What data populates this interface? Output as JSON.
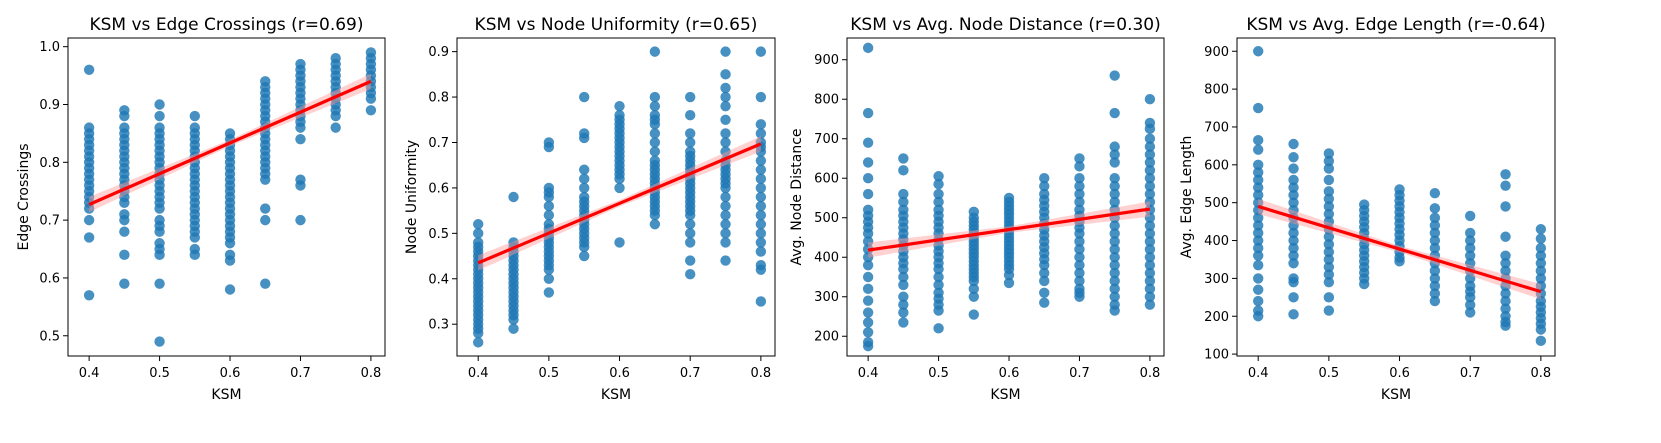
{
  "chart_data": [
    {
      "type": "scatter",
      "title": "KSM vs Edge Crossings (r=0.69)",
      "xlabel": "KSM",
      "ylabel": "Edge Crossings",
      "xlim": [
        0.37,
        0.82
      ],
      "ylim": [
        0.465,
        1.015
      ],
      "xticks": [
        0.4,
        0.5,
        0.6,
        0.7,
        0.8
      ],
      "yticks": [
        0.5,
        0.6,
        0.7,
        0.8,
        0.9,
        1.0
      ],
      "ytick_labels": [
        "0.5",
        "0.6",
        "0.7",
        "0.8",
        "0.9",
        "1.0"
      ],
      "regression": {
        "x": [
          0.4,
          0.8
        ],
        "y": [
          0.727,
          0.94
        ],
        "color": "#ff0000"
      },
      "point_color": "#1f77b4",
      "series": [
        {
          "x": 0.4,
          "y": [
            0.96,
            0.86,
            0.85,
            0.84,
            0.83,
            0.82,
            0.81,
            0.8,
            0.79,
            0.78,
            0.77,
            0.76,
            0.75,
            0.74,
            0.73,
            0.72,
            0.7,
            0.67,
            0.57
          ]
        },
        {
          "x": 0.45,
          "y": [
            0.89,
            0.88,
            0.86,
            0.85,
            0.84,
            0.83,
            0.82,
            0.81,
            0.8,
            0.79,
            0.78,
            0.77,
            0.76,
            0.75,
            0.74,
            0.73,
            0.71,
            0.7,
            0.68,
            0.64,
            0.59
          ]
        },
        {
          "x": 0.5,
          "y": [
            0.9,
            0.88,
            0.86,
            0.85,
            0.84,
            0.83,
            0.82,
            0.81,
            0.8,
            0.79,
            0.78,
            0.77,
            0.76,
            0.75,
            0.74,
            0.73,
            0.72,
            0.7,
            0.69,
            0.68,
            0.66,
            0.65,
            0.64,
            0.59,
            0.49
          ]
        },
        {
          "x": 0.55,
          "y": [
            0.88,
            0.86,
            0.85,
            0.84,
            0.83,
            0.82,
            0.81,
            0.8,
            0.79,
            0.78,
            0.77,
            0.76,
            0.75,
            0.74,
            0.73,
            0.72,
            0.71,
            0.7,
            0.69,
            0.68,
            0.67,
            0.65,
            0.64
          ]
        },
        {
          "x": 0.6,
          "y": [
            0.85,
            0.84,
            0.83,
            0.82,
            0.81,
            0.8,
            0.79,
            0.78,
            0.77,
            0.76,
            0.75,
            0.74,
            0.73,
            0.72,
            0.71,
            0.7,
            0.69,
            0.68,
            0.67,
            0.66,
            0.64,
            0.63,
            0.58
          ]
        },
        {
          "x": 0.65,
          "y": [
            0.94,
            0.93,
            0.92,
            0.91,
            0.9,
            0.89,
            0.88,
            0.87,
            0.86,
            0.85,
            0.84,
            0.83,
            0.82,
            0.81,
            0.8,
            0.79,
            0.78,
            0.77,
            0.72,
            0.7,
            0.59
          ]
        },
        {
          "x": 0.7,
          "y": [
            0.97,
            0.96,
            0.95,
            0.94,
            0.93,
            0.92,
            0.91,
            0.9,
            0.89,
            0.88,
            0.87,
            0.86,
            0.84,
            0.77,
            0.76,
            0.7
          ]
        },
        {
          "x": 0.75,
          "y": [
            0.98,
            0.97,
            0.96,
            0.95,
            0.94,
            0.93,
            0.92,
            0.91,
            0.9,
            0.89,
            0.88,
            0.86
          ]
        },
        {
          "x": 0.8,
          "y": [
            0.99,
            0.98,
            0.97,
            0.96,
            0.95,
            0.94,
            0.93,
            0.92,
            0.91,
            0.89
          ]
        }
      ]
    },
    {
      "type": "scatter",
      "title": "KSM vs Node Uniformity (r=0.65)",
      "xlabel": "KSM",
      "ylabel": "Node Uniformity",
      "xlim": [
        0.37,
        0.82
      ],
      "ylim": [
        0.23,
        0.93
      ],
      "xticks": [
        0.4,
        0.5,
        0.6,
        0.7,
        0.8
      ],
      "yticks": [
        0.3,
        0.4,
        0.5,
        0.6,
        0.7,
        0.8,
        0.9
      ],
      "ytick_labels": [
        "0.3",
        "0.4",
        "0.5",
        "0.6",
        "0.7",
        "0.8",
        "0.9"
      ],
      "regression": {
        "x": [
          0.4,
          0.8
        ],
        "y": [
          0.435,
          0.697
        ],
        "color": "#ff0000"
      },
      "point_color": "#1f77b4",
      "series": [
        {
          "x": 0.4,
          "y": [
            0.52,
            0.5,
            0.48,
            0.47,
            0.46,
            0.45,
            0.44,
            0.43,
            0.42,
            0.41,
            0.4,
            0.39,
            0.38,
            0.37,
            0.36,
            0.35,
            0.34,
            0.33,
            0.32,
            0.31,
            0.3,
            0.29,
            0.28,
            0.26
          ]
        },
        {
          "x": 0.45,
          "y": [
            0.58,
            0.48,
            0.47,
            0.46,
            0.45,
            0.44,
            0.43,
            0.42,
            0.41,
            0.4,
            0.39,
            0.38,
            0.37,
            0.36,
            0.35,
            0.34,
            0.33,
            0.32,
            0.31,
            0.29
          ]
        },
        {
          "x": 0.5,
          "y": [
            0.7,
            0.69,
            0.6,
            0.59,
            0.58,
            0.56,
            0.54,
            0.52,
            0.51,
            0.5,
            0.49,
            0.48,
            0.47,
            0.46,
            0.45,
            0.44,
            0.43,
            0.42,
            0.4,
            0.37
          ]
        },
        {
          "x": 0.55,
          "y": [
            0.8,
            0.72,
            0.71,
            0.64,
            0.62,
            0.6,
            0.58,
            0.57,
            0.56,
            0.55,
            0.54,
            0.53,
            0.52,
            0.51,
            0.5,
            0.49,
            0.48,
            0.47,
            0.45
          ]
        },
        {
          "x": 0.6,
          "y": [
            0.78,
            0.76,
            0.75,
            0.74,
            0.73,
            0.72,
            0.71,
            0.7,
            0.69,
            0.68,
            0.67,
            0.66,
            0.65,
            0.64,
            0.63,
            0.62,
            0.6,
            0.48
          ]
        },
        {
          "x": 0.65,
          "y": [
            0.9,
            0.8,
            0.78,
            0.76,
            0.75,
            0.74,
            0.72,
            0.7,
            0.68,
            0.66,
            0.65,
            0.64,
            0.63,
            0.62,
            0.61,
            0.6,
            0.59,
            0.58,
            0.57,
            0.56,
            0.55,
            0.54,
            0.52
          ]
        },
        {
          "x": 0.7,
          "y": [
            0.8,
            0.76,
            0.72,
            0.7,
            0.68,
            0.67,
            0.66,
            0.65,
            0.64,
            0.63,
            0.62,
            0.61,
            0.6,
            0.59,
            0.58,
            0.57,
            0.56,
            0.55,
            0.54,
            0.52,
            0.5,
            0.48,
            0.44,
            0.41
          ]
        },
        {
          "x": 0.75,
          "y": [
            0.9,
            0.85,
            0.82,
            0.8,
            0.78,
            0.75,
            0.72,
            0.7,
            0.68,
            0.66,
            0.65,
            0.64,
            0.63,
            0.62,
            0.61,
            0.6,
            0.58,
            0.56,
            0.54,
            0.52,
            0.5,
            0.48,
            0.44
          ]
        },
        {
          "x": 0.8,
          "y": [
            0.9,
            0.8,
            0.74,
            0.72,
            0.7,
            0.69,
            0.68,
            0.66,
            0.64,
            0.62,
            0.6,
            0.58,
            0.56,
            0.54,
            0.52,
            0.5,
            0.48,
            0.46,
            0.43,
            0.42,
            0.35
          ]
        }
      ]
    },
    {
      "type": "scatter",
      "title": "KSM vs Avg. Node Distance (r=0.30)",
      "xlabel": "KSM",
      "ylabel": "Avg. Node Distance",
      "xlim": [
        0.37,
        0.82
      ],
      "ylim": [
        150,
        955
      ],
      "xticks": [
        0.4,
        0.5,
        0.6,
        0.7,
        0.8
      ],
      "yticks": [
        200,
        300,
        400,
        500,
        600,
        700,
        800,
        900
      ],
      "ytick_labels": [
        "200",
        "300",
        "400",
        "500",
        "600",
        "700",
        "800",
        "900"
      ],
      "regression": {
        "x": [
          0.4,
          0.8
        ],
        "y": [
          418,
          522
        ],
        "color": "#ff0000"
      },
      "point_color": "#1f77b4",
      "series": [
        {
          "x": 0.4,
          "y": [
            930,
            765,
            690,
            640,
            600,
            560,
            520,
            505,
            490,
            475,
            460,
            440,
            420,
            400,
            380,
            350,
            320,
            290,
            260,
            235,
            210,
            185,
            175
          ]
        },
        {
          "x": 0.45,
          "y": [
            650,
            620,
            560,
            540,
            520,
            505,
            490,
            475,
            460,
            445,
            430,
            415,
            400,
            385,
            370,
            350,
            330,
            300,
            280,
            260,
            235
          ]
        },
        {
          "x": 0.5,
          "y": [
            605,
            585,
            560,
            540,
            520,
            505,
            490,
            475,
            460,
            445,
            430,
            415,
            400,
            385,
            370,
            350,
            330,
            310,
            295,
            280,
            265,
            220
          ]
        },
        {
          "x": 0.55,
          "y": [
            515,
            500,
            490,
            480,
            470,
            460,
            450,
            440,
            430,
            420,
            410,
            400,
            390,
            380,
            370,
            360,
            350,
            340,
            320,
            300,
            255
          ]
        },
        {
          "x": 0.6,
          "y": [
            550,
            540,
            530,
            520,
            510,
            500,
            490,
            480,
            470,
            460,
            450,
            440,
            430,
            420,
            410,
            400,
            390,
            380,
            370,
            355,
            335
          ]
        },
        {
          "x": 0.65,
          "y": [
            600,
            580,
            560,
            545,
            530,
            515,
            500,
            485,
            470,
            455,
            440,
            425,
            410,
            395,
            380,
            360,
            340,
            310,
            285
          ]
        },
        {
          "x": 0.7,
          "y": [
            650,
            630,
            600,
            580,
            560,
            540,
            520,
            505,
            490,
            475,
            460,
            440,
            420,
            400,
            380,
            360,
            340,
            320,
            310,
            300
          ]
        },
        {
          "x": 0.75,
          "y": [
            860,
            765,
            680,
            660,
            640,
            600,
            580,
            560,
            540,
            520,
            500,
            480,
            460,
            440,
            420,
            400,
            380,
            360,
            340,
            320,
            300,
            280,
            265
          ]
        },
        {
          "x": 0.8,
          "y": [
            800,
            740,
            725,
            700,
            680,
            660,
            640,
            620,
            600,
            580,
            560,
            540,
            520,
            500,
            480,
            460,
            440,
            420,
            400,
            380,
            360,
            340,
            320,
            300,
            280
          ]
        }
      ]
    },
    {
      "type": "scatter",
      "title": "KSM vs Avg. Edge Length (r=-0.64)",
      "xlabel": "KSM",
      "ylabel": "Avg. Edge Length",
      "xlim": [
        0.37,
        0.82
      ],
      "ylim": [
        95,
        935
      ],
      "xticks": [
        0.4,
        0.5,
        0.6,
        0.7,
        0.8
      ],
      "yticks": [
        100,
        200,
        300,
        400,
        500,
        600,
        700,
        800,
        900
      ],
      "ytick_labels": [
        "100",
        "200",
        "300",
        "400",
        "500",
        "600",
        "700",
        "800",
        "900"
      ],
      "regression": {
        "x": [
          0.4,
          0.8
        ],
        "y": [
          490,
          265
        ],
        "color": "#ff0000"
      },
      "point_color": "#1f77b4",
      "series": [
        {
          "x": 0.4,
          "y": [
            900,
            750,
            665,
            640,
            600,
            580,
            560,
            540,
            520,
            500,
            480,
            460,
            440,
            420,
            400,
            380,
            360,
            335,
            300,
            270,
            240,
            215,
            200
          ]
        },
        {
          "x": 0.45,
          "y": [
            655,
            620,
            590,
            560,
            540,
            520,
            500,
            480,
            460,
            440,
            420,
            400,
            380,
            360,
            340,
            300,
            290,
            250,
            205
          ]
        },
        {
          "x": 0.5,
          "y": [
            630,
            610,
            590,
            560,
            530,
            510,
            490,
            470,
            450,
            430,
            410,
            390,
            370,
            350,
            330,
            310,
            290,
            250,
            215
          ]
        },
        {
          "x": 0.55,
          "y": [
            495,
            480,
            465,
            450,
            435,
            420,
            405,
            390,
            375,
            360,
            345,
            330,
            315,
            300,
            285
          ]
        },
        {
          "x": 0.6,
          "y": [
            535,
            520,
            505,
            490,
            475,
            460,
            445,
            430,
            415,
            400,
            385,
            370,
            355,
            345
          ]
        },
        {
          "x": 0.65,
          "y": [
            525,
            485,
            460,
            440,
            420,
            400,
            380,
            360,
            340,
            320,
            300,
            280,
            260,
            240
          ]
        },
        {
          "x": 0.7,
          "y": [
            465,
            420,
            400,
            380,
            360,
            340,
            320,
            300,
            280,
            265,
            250,
            230,
            210
          ]
        },
        {
          "x": 0.75,
          "y": [
            575,
            545,
            490,
            410,
            360,
            340,
            320,
            300,
            280,
            260,
            240,
            220,
            200,
            185,
            175
          ]
        },
        {
          "x": 0.8,
          "y": [
            430,
            405,
            380,
            360,
            340,
            320,
            300,
            280,
            260,
            240,
            225,
            210,
            195,
            180,
            165,
            135
          ]
        }
      ]
    }
  ]
}
